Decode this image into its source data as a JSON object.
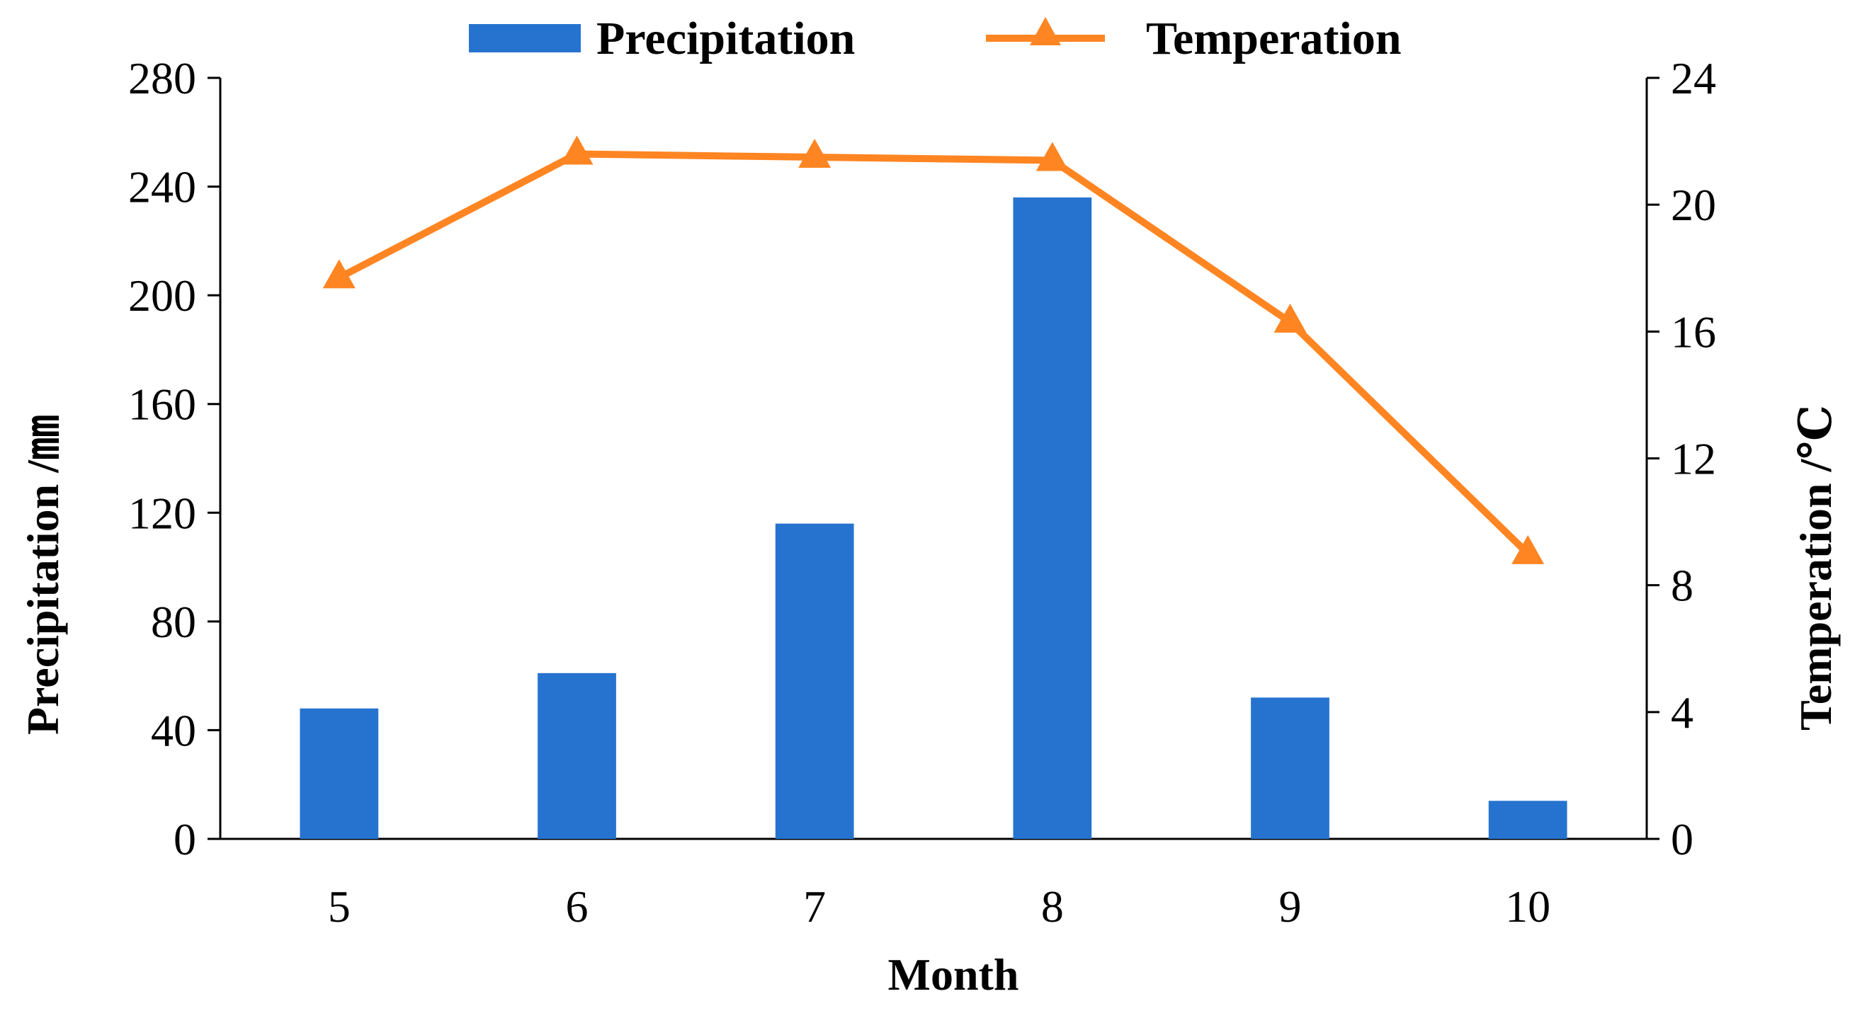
{
  "chart_data": {
    "type": "bar+line",
    "categories": [
      "5",
      "6",
      "7",
      "8",
      "9",
      "10"
    ],
    "series": [
      {
        "name": "Precipitation",
        "type": "bar",
        "axis": "left",
        "color": "#2673CF",
        "values": [
          48,
          61,
          116,
          236,
          52,
          14
        ]
      },
      {
        "name": "Temperation",
        "type": "line",
        "axis": "right",
        "color": "#FF8522",
        "marker": "triangle",
        "values": [
          17.7,
          21.6,
          21.5,
          21.4,
          16.3,
          9.0
        ]
      }
    ],
    "xlabel": "Month",
    "ylabel_left": "Precipitation /㎜",
    "ylabel_right": "Temperation /℃",
    "ylim_left": [
      0,
      280
    ],
    "yticks_left": [
      0,
      40,
      80,
      120,
      160,
      200,
      240,
      280
    ],
    "ylim_right": [
      0,
      24
    ],
    "yticks_right": [
      0,
      4,
      8,
      12,
      16,
      20,
      24
    ],
    "legend_position": "top-center",
    "grid": false
  }
}
